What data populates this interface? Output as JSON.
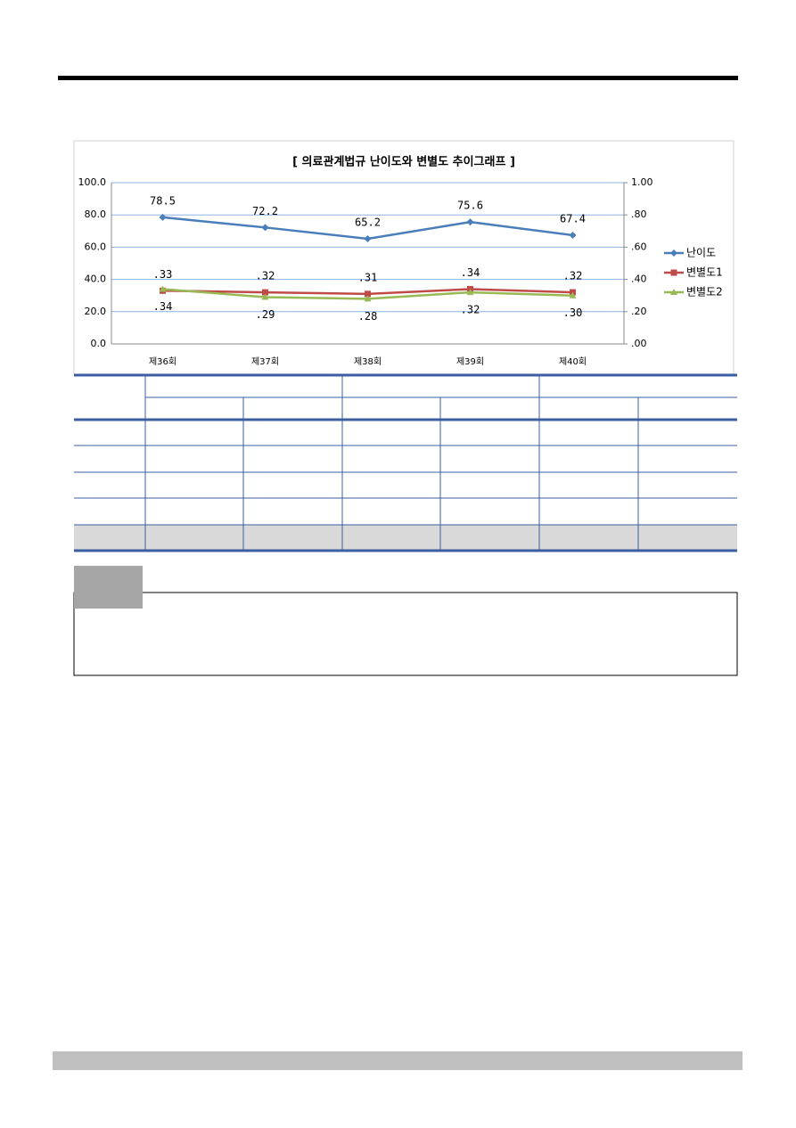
{
  "chart_data": {
    "type": "line",
    "title": "[ 의료관계법규 난이도와 변별도 추이그래프 ]",
    "categories": [
      "제36회",
      "제37회",
      "제38회",
      "제39회",
      "제40회"
    ],
    "series": [
      {
        "name": "난이도",
        "color": "#4a7ebb",
        "marker": "diamond",
        "label_pos": "above",
        "values": [
          78.5,
          72.2,
          65.2,
          75.6,
          67.4
        ]
      },
      {
        "name": "변별도1",
        "color": "#be4b48",
        "marker": "square",
        "axis": "y2",
        "label_pos": "above",
        "values": [
          0.33,
          0.32,
          0.31,
          0.34,
          0.32
        ],
        "value_labels": [
          ".33",
          ".32",
          ".31",
          ".34",
          ".32"
        ]
      },
      {
        "name": "변별도2",
        "color": "#98b954",
        "marker": "triangle",
        "axis": "y2",
        "label_pos": "below",
        "values": [
          0.34,
          0.29,
          0.28,
          0.32,
          0.3
        ],
        "value_labels": [
          ".34",
          ".29",
          ".28",
          ".32",
          ".30"
        ]
      }
    ],
    "ylim": [
      0,
      100
    ],
    "yticks": [
      {
        "value": 0,
        "label": "0.0"
      },
      {
        "value": 20,
        "label": "20.0"
      },
      {
        "value": 40,
        "label": "40.0"
      },
      {
        "value": 60,
        "label": "60.0"
      },
      {
        "value": 80,
        "label": "80.0"
      },
      {
        "value": 100,
        "label": "100.0"
      }
    ],
    "y2lim": [
      0,
      1
    ],
    "y2ticks": [
      {
        "value": 0,
        "label": ".00"
      },
      {
        "value": 0.2,
        "label": ".20"
      },
      {
        "value": 0.4,
        "label": ".40"
      },
      {
        "value": 0.6,
        "label": ".60"
      },
      {
        "value": 0.8,
        "label": ".80"
      },
      {
        "value": 1,
        "label": "1.00"
      }
    ],
    "grid": true,
    "legend": "right"
  }
}
